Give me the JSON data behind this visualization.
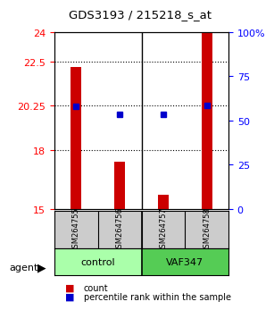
{
  "title": "GDS3193 / 215218_s_at",
  "samples": [
    "GSM264755",
    "GSM264756",
    "GSM264757",
    "GSM264758"
  ],
  "groups": [
    "control",
    "control",
    "VAF347",
    "VAF347"
  ],
  "group_labels": [
    "control",
    "VAF347"
  ],
  "bar_values": [
    22.2,
    17.4,
    15.7,
    24.3
  ],
  "dot_values": [
    20.2,
    19.8,
    19.8,
    20.25
  ],
  "ylim_left": [
    15,
    24
  ],
  "yticks_left": [
    15,
    18,
    20.25,
    22.5,
    24
  ],
  "ytick_labels_left": [
    "15",
    "18",
    "20.25",
    "22.5",
    "24"
  ],
  "yticks_right": [
    0,
    25,
    50,
    75,
    100
  ],
  "ytick_labels_right": [
    "0",
    "25",
    "50",
    "75",
    "100%"
  ],
  "hlines": [
    22.5,
    20.25,
    18
  ],
  "bar_color": "#cc0000",
  "dot_color": "#0000cc",
  "control_color": "#aaffaa",
  "vaf_color": "#55cc55",
  "sample_bg_color": "#cccccc",
  "legend_count_color": "#cc0000",
  "legend_pct_color": "#0000cc"
}
